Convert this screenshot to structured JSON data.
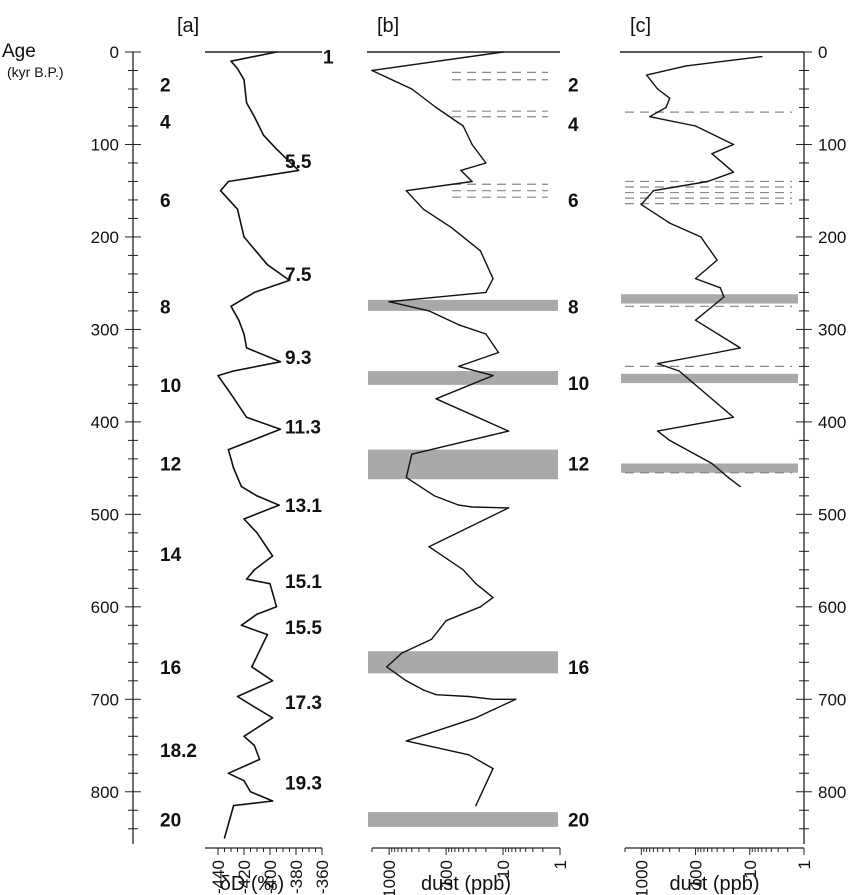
{
  "chart_data": [
    {
      "panel": "[a]",
      "type": "line",
      "ylabel": "Age",
      "ylabel_unit": "(kyr B.P.)",
      "xlabel": "δD (‰)",
      "y_axis_direction": "down",
      "ylim": [
        0,
        850
      ],
      "xlim": [
        -450,
        -360
      ],
      "y_ticks": [
        0,
        100,
        200,
        300,
        400,
        500,
        600,
        700,
        800
      ],
      "x_ticks": [
        -440,
        -420,
        -400,
        -380,
        -360
      ],
      "series": [
        {
          "x": [
            -395,
            -430,
            -425,
            -420,
            -418,
            -412,
            -405,
            -395,
            -378,
            -432,
            -438,
            -425,
            -420,
            -402,
            -385,
            -412,
            -430,
            -424,
            -420,
            -418,
            -392,
            -428,
            -440,
            -430,
            -418,
            -392,
            -432,
            -428,
            -422,
            -410,
            -393,
            -420,
            -410,
            -398,
            -412,
            -418,
            -400,
            -395,
            -410,
            -422,
            -402,
            -414,
            -398,
            -425,
            -410,
            -398,
            -420,
            -412,
            -408,
            -432,
            -420,
            -415,
            -398,
            -428,
            -435
          ],
          "y": [
            0,
            10,
            18,
            30,
            55,
            70,
            90,
            105,
            128,
            140,
            150,
            170,
            200,
            230,
            247,
            260,
            275,
            290,
            305,
            320,
            335,
            345,
            350,
            370,
            395,
            408,
            430,
            450,
            470,
            480,
            490,
            505,
            520,
            545,
            560,
            570,
            575,
            600,
            608,
            620,
            630,
            665,
            680,
            697,
            710,
            720,
            740,
            750,
            765,
            780,
            788,
            800,
            810,
            815,
            850
          ]
        }
      ],
      "stage_labels": [
        {
          "text": "1",
          "age": 5,
          "side": "right"
        },
        {
          "text": "2",
          "age": 35,
          "side": "left"
        },
        {
          "text": "4",
          "age": 75,
          "side": "left"
        },
        {
          "text": "5.5",
          "age": 118,
          "side": "right"
        },
        {
          "text": "6",
          "age": 160,
          "side": "left"
        },
        {
          "text": "7.5",
          "age": 240,
          "side": "right"
        },
        {
          "text": "8",
          "age": 275,
          "side": "left"
        },
        {
          "text": "9.3",
          "age": 330,
          "side": "right"
        },
        {
          "text": "10",
          "age": 360,
          "side": "left"
        },
        {
          "text": "11.3",
          "age": 405,
          "side": "right"
        },
        {
          "text": "12",
          "age": 445,
          "side": "left"
        },
        {
          "text": "13.1",
          "age": 490,
          "side": "right"
        },
        {
          "text": "14",
          "age": 543,
          "side": "left"
        },
        {
          "text": "15.1",
          "age": 572,
          "side": "right"
        },
        {
          "text": "15.5",
          "age": 622,
          "side": "right"
        },
        {
          "text": "16",
          "age": 665,
          "side": "left"
        },
        {
          "text": "17.3",
          "age": 703,
          "side": "right"
        },
        {
          "text": "18.2",
          "age": 755,
          "side": "left"
        },
        {
          "text": "19.3",
          "age": 790,
          "side": "right"
        },
        {
          "text": "20",
          "age": 830,
          "side": "left"
        }
      ]
    },
    {
      "panel": "[b]",
      "type": "line",
      "xlabel": "dust (ppb)",
      "x_scale": "log",
      "x_reversed": true,
      "xlim": [
        2000,
        1
      ],
      "x_ticks": [
        1000,
        100,
        10,
        1
      ],
      "ylim": [
        0,
        850
      ],
      "series": [
        {
          "x": [
            10,
            2000,
            400,
            150,
            50,
            35,
            20,
            55,
            35,
            500,
            250,
            80,
            25,
            15,
            20,
            1000,
            200,
            60,
            20,
            12,
            60,
            15,
            150,
            8,
            400,
            500,
            160,
            60,
            35,
            8,
            200,
            50,
            30,
            15,
            25,
            100,
            180,
            600,
            1100,
            500,
            250,
            150,
            40,
            15,
            6,
            30,
            500,
            40,
            15,
            30
          ],
          "y": [
            0,
            20,
            40,
            60,
            80,
            100,
            120,
            128,
            140,
            150,
            170,
            190,
            215,
            245,
            260,
            270,
            280,
            295,
            305,
            325,
            340,
            350,
            375,
            410,
            435,
            460,
            480,
            490,
            492,
            493,
            535,
            560,
            575,
            590,
            600,
            615,
            635,
            650,
            665,
            680,
            690,
            695,
            697,
            700,
            700,
            720,
            745,
            760,
            775,
            815
          ]
        }
      ],
      "shaded_bands_age": [
        [
          268,
          280
        ],
        [
          345,
          360
        ],
        [
          430,
          462
        ],
        [
          648,
          672
        ],
        [
          822,
          838
        ]
      ],
      "dashed_lines_age": [
        22,
        30,
        64,
        70,
        143,
        150,
        157
      ],
      "stage_labels": [
        {
          "text": "2",
          "age": 35
        },
        {
          "text": "4",
          "age": 78
        },
        {
          "text": "6",
          "age": 160
        },
        {
          "text": "8",
          "age": 275
        },
        {
          "text": "10",
          "age": 358
        },
        {
          "text": "12",
          "age": 445
        },
        {
          "text": "16",
          "age": 665
        },
        {
          "text": "20",
          "age": 830
        }
      ]
    },
    {
      "panel": "[c]",
      "type": "line",
      "xlabel": "dust (ppb)",
      "x_scale": "log",
      "x_reversed": true,
      "xlim": [
        2000,
        1
      ],
      "x_ticks": [
        1000,
        100,
        10,
        1
      ],
      "ylim": [
        0,
        850
      ],
      "right_y_ticks": [
        0,
        100,
        200,
        300,
        400,
        500,
        600,
        700,
        800
      ],
      "series": [
        {
          "x": [
            6,
            150,
            800,
            500,
            300,
            350,
            700,
            100,
            20,
            50,
            20,
            60,
            600,
            1000,
            300,
            80,
            40,
            100,
            35,
            30,
            100,
            15,
            40,
            500,
            200,
            40,
            20,
            500,
            300,
            50,
            25,
            15
          ],
          "y": [
            5,
            15,
            25,
            40,
            50,
            60,
            70,
            80,
            100,
            110,
            130,
            140,
            150,
            165,
            185,
            200,
            225,
            245,
            255,
            265,
            290,
            320,
            325,
            337,
            345,
            380,
            395,
            410,
            420,
            445,
            460,
            470
          ]
        }
      ],
      "shaded_bands_age": [
        [
          262,
          272
        ],
        [
          348,
          358
        ],
        [
          445,
          455
        ]
      ],
      "dashed_lines_age": [
        65,
        140,
        146,
        152,
        158,
        164,
        275,
        340,
        455
      ]
    }
  ]
}
